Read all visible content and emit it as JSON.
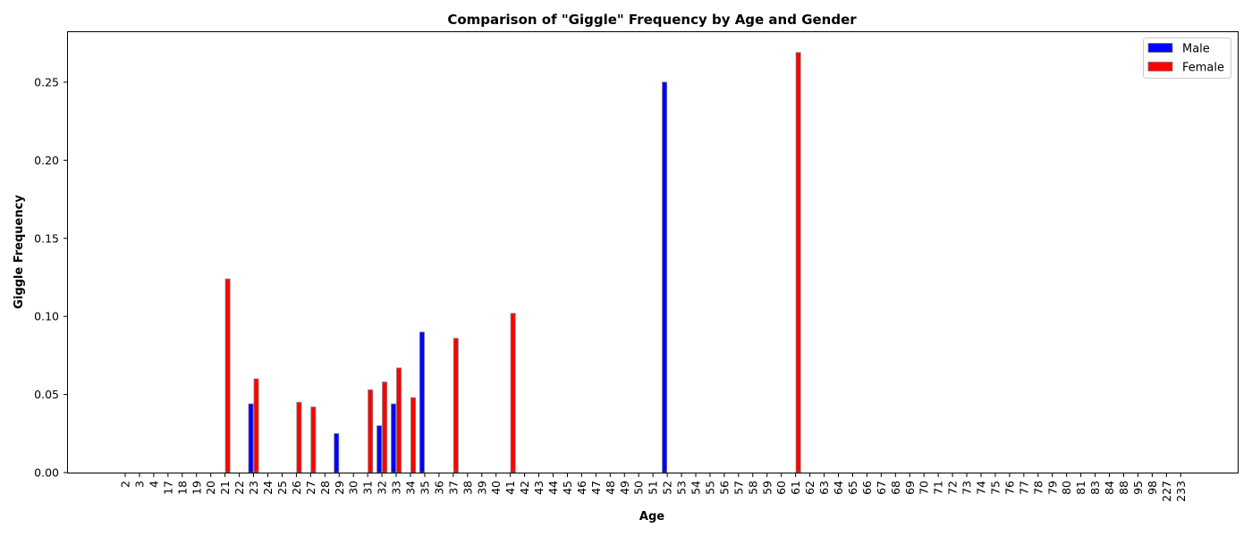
{
  "chart_data": {
    "type": "bar",
    "title": "Comparison of \"Giggle\" Frequency by Age and Gender",
    "xlabel": "Age",
    "ylabel": "Giggle Frequency",
    "ylim": [
      0,
      0.282
    ],
    "yticks": [
      "0.00",
      "0.05",
      "0.10",
      "0.15",
      "0.20",
      "0.25"
    ],
    "ytick_values": [
      0,
      0.05,
      0.1,
      0.15,
      0.2,
      0.25
    ],
    "grid": false,
    "legend_position": "top-right",
    "categories": [
      "2",
      "3",
      "4",
      "17",
      "18",
      "19",
      "20",
      "21",
      "22",
      "23",
      "24",
      "25",
      "26",
      "27",
      "28",
      "29",
      "30",
      "31",
      "32",
      "33",
      "34",
      "35",
      "36",
      "37",
      "38",
      "39",
      "40",
      "41",
      "42",
      "43",
      "44",
      "45",
      "46",
      "47",
      "48",
      "49",
      "50",
      "51",
      "52",
      "53",
      "54",
      "55",
      "56",
      "57",
      "58",
      "59",
      "60",
      "61",
      "62",
      "63",
      "64",
      "65",
      "66",
      "67",
      "68",
      "69",
      "70",
      "71",
      "72",
      "73",
      "74",
      "75",
      "76",
      "77",
      "78",
      "79",
      "80",
      "81",
      "83",
      "84",
      "88",
      "95",
      "98",
      "227",
      "233"
    ],
    "series": [
      {
        "name": "Male",
        "color": "#0000ff",
        "values": [
          0,
          0,
          0,
          0,
          0,
          0,
          0,
          0,
          0,
          0.044,
          0,
          0,
          0,
          0,
          0,
          0.025,
          0,
          0,
          0.03,
          0.044,
          0,
          0.09,
          0,
          0,
          0,
          0,
          0,
          0,
          0,
          0,
          0,
          0,
          0,
          0,
          0,
          0,
          0,
          0,
          0.25,
          0,
          0,
          0,
          0,
          0,
          0,
          0,
          0,
          0,
          0,
          0,
          0,
          0,
          0,
          0,
          0,
          0,
          0,
          0,
          0,
          0,
          0,
          0,
          0,
          0,
          0,
          0,
          0,
          0,
          0,
          0,
          0,
          0,
          0,
          0,
          0
        ]
      },
      {
        "name": "Female",
        "color": "#ff0000",
        "values": [
          0,
          0,
          0,
          0,
          0,
          0,
          0,
          0.124,
          0,
          0.06,
          0,
          0,
          0.045,
          0.042,
          0,
          0,
          0,
          0.053,
          0.058,
          0.067,
          0.048,
          0,
          0,
          0.086,
          0,
          0,
          0,
          0.102,
          0,
          0,
          0,
          0,
          0,
          0,
          0,
          0,
          0,
          0,
          0,
          0,
          0,
          0,
          0,
          0,
          0,
          0,
          0,
          0.269,
          0,
          0,
          0,
          0,
          0,
          0,
          0,
          0,
          0,
          0,
          0,
          0,
          0,
          0,
          0,
          0,
          0,
          0,
          0,
          0,
          0,
          0,
          0,
          0,
          0,
          0,
          0
        ]
      }
    ]
  }
}
